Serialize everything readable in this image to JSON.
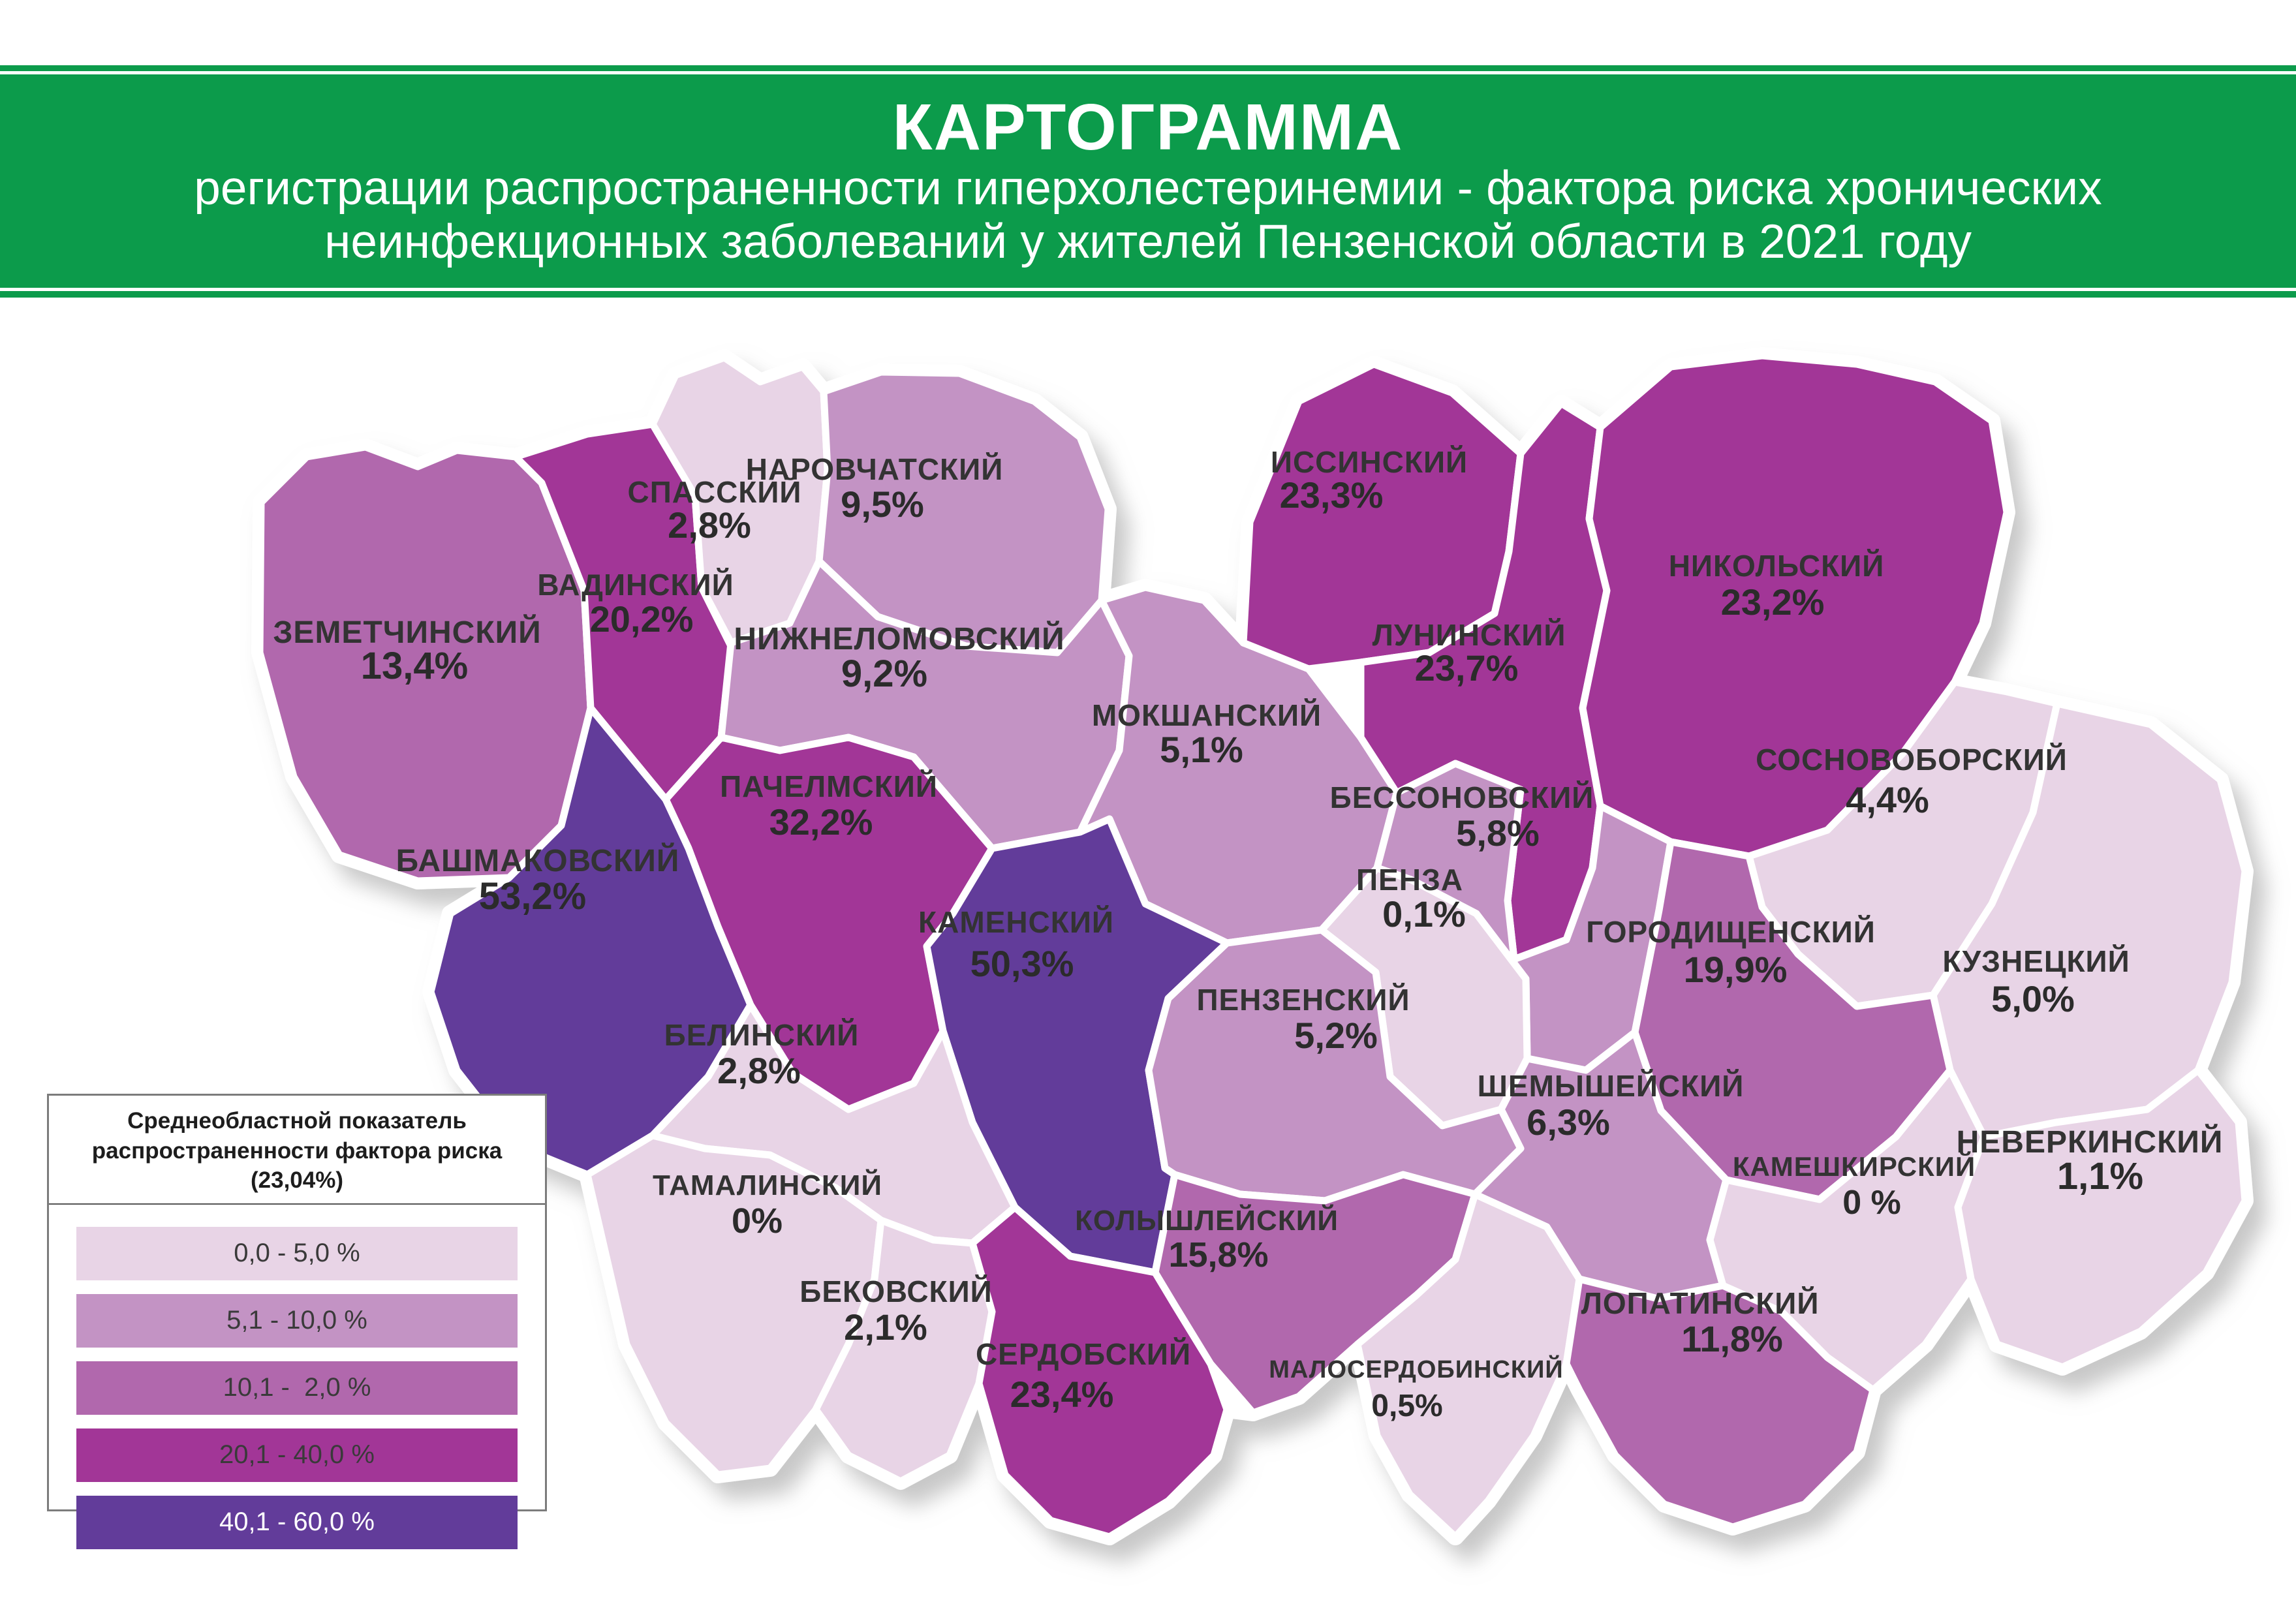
{
  "header": {
    "title": "КАРТОГРАММА",
    "subtitle_line1": "регистрации распространенности гиперхолестеринемии - фактора риска хронических",
    "subtitle_line2": "неинфекционных заболеваний у жителей Пензенской области в 2021 году",
    "banner_color": "#0c9b4b"
  },
  "legend": {
    "title_line1": "Среднеобластной показатель",
    "title_line2": "распространенности фактора риска (23,04%)",
    "average_value": "23,04%",
    "items": [
      {
        "range": "0,0 - 5,0 %",
        "color": "#e8d4e6",
        "text_color": "#3a3a3a"
      },
      {
        "range": "5,1 - 10,0 %",
        "color": "#c393c4",
        "text_color": "#3a3a3a"
      },
      {
        "range": "10,1 -  2,0 %",
        "color": "#b168ad",
        "text_color": "#3a3a3a"
      },
      {
        "range": "20,1 - 40,0 %",
        "color": "#a23697",
        "text_color": "#3a3a3a"
      },
      {
        "range": "40,1 - 60,0 %",
        "color": "#623c9a",
        "text_color": "#ffffff"
      }
    ]
  },
  "map": {
    "region_label_color": "#333333",
    "districts": [
      {
        "id": "zemetchinsky",
        "name": "ЗЕМЕТЧИНСКИЙ",
        "value": "13,4%",
        "category": 3
      },
      {
        "id": "vadinsky",
        "name": "ВАДИНСКИЙ",
        "value": "20,2%",
        "category": 4
      },
      {
        "id": "spassky",
        "name": "СПАССКИЙ",
        "value": "2,8%",
        "category": 1
      },
      {
        "id": "narovchatsky",
        "name": "НАРОВЧАТСКИЙ",
        "value": "9,5%",
        "category": 2
      },
      {
        "id": "nizhnelomovsky",
        "name": "НИЖНЕЛОМОВСКИЙ",
        "value": "9,2%",
        "category": 2
      },
      {
        "id": "mokshansky",
        "name": "МОКШАНСКИЙ",
        "value": "5,1%",
        "category": 2
      },
      {
        "id": "issinsky",
        "name": "ИССИНСКИЙ",
        "value": "23,3%",
        "category": 4
      },
      {
        "id": "luninsky",
        "name": "ЛУНИНСКИЙ",
        "value": "23,7%",
        "category": 4
      },
      {
        "id": "nikolsky",
        "name": "НИКОЛЬСКИЙ",
        "value": "23,2%",
        "category": 4
      },
      {
        "id": "sosnovoborsky",
        "name": "СОСНОВОБОРСКИЙ",
        "value": "4,4%",
        "category": 1
      },
      {
        "id": "kuznetsky",
        "name": "КУЗНЕЦКИЙ",
        "value": "5,0%",
        "category": 1
      },
      {
        "id": "bessonovsky",
        "name": "БЕССОНОВСКИЙ",
        "value": "5,8%",
        "category": 2
      },
      {
        "id": "penza",
        "name": "ПЕНЗА",
        "value": "0,1%",
        "category": 1
      },
      {
        "id": "gorodishchensky",
        "name": "ГОРОДИЩЕНСКИЙ",
        "value": "19,9%",
        "category": 3
      },
      {
        "id": "pachelmsky",
        "name": "ПАЧЕЛМСКИЙ",
        "value": "32,2%",
        "category": 4
      },
      {
        "id": "bashmakovsky",
        "name": "БАШМАКОВСКИЙ",
        "value": "53,2%",
        "category": 5
      },
      {
        "id": "kamensky",
        "name": "КАМЕНСКИЙ",
        "value": "50,3%",
        "category": 5
      },
      {
        "id": "penzensky",
        "name": "ПЕНЗЕНСКИЙ",
        "value": "5,2%",
        "category": 2
      },
      {
        "id": "belinsky",
        "name": "БЕЛИНСКИЙ",
        "value": "2,8%",
        "category": 1
      },
      {
        "id": "tamalinsky",
        "name": "ТАМАЛИНСКИЙ",
        "value": "0%",
        "category": 1
      },
      {
        "id": "bekovsky",
        "name": "БЕКОВСКИЙ",
        "value": "2,1%",
        "category": 1
      },
      {
        "id": "serdobsky",
        "name": "СЕРДОБСКИЙ",
        "value": "23,4%",
        "category": 4
      },
      {
        "id": "kolyshleysky",
        "name": "КОЛЫШЛЕЙСКИЙ",
        "value": "15,8%",
        "category": 3
      },
      {
        "id": "malserdobinsky",
        "name": "МАЛОСЕРДОБИНСКИЙ",
        "value": "0,5%",
        "category": 1
      },
      {
        "id": "shemysheysky",
        "name": "ШЕМЫШЕЙСКИЙ",
        "value": "6,3%",
        "category": 2
      },
      {
        "id": "lopatinsky",
        "name": "ЛОПАТИНСКИЙ",
        "value": "11,8%",
        "category": 3
      },
      {
        "id": "kameshkirsky",
        "name": "КАМЕШКИРСКИЙ",
        "value": "0 %",
        "category": 1
      },
      {
        "id": "neverkinsky",
        "name": "НЕВЕРКИНСКИЙ",
        "value": "1,1%",
        "category": 1
      }
    ]
  }
}
